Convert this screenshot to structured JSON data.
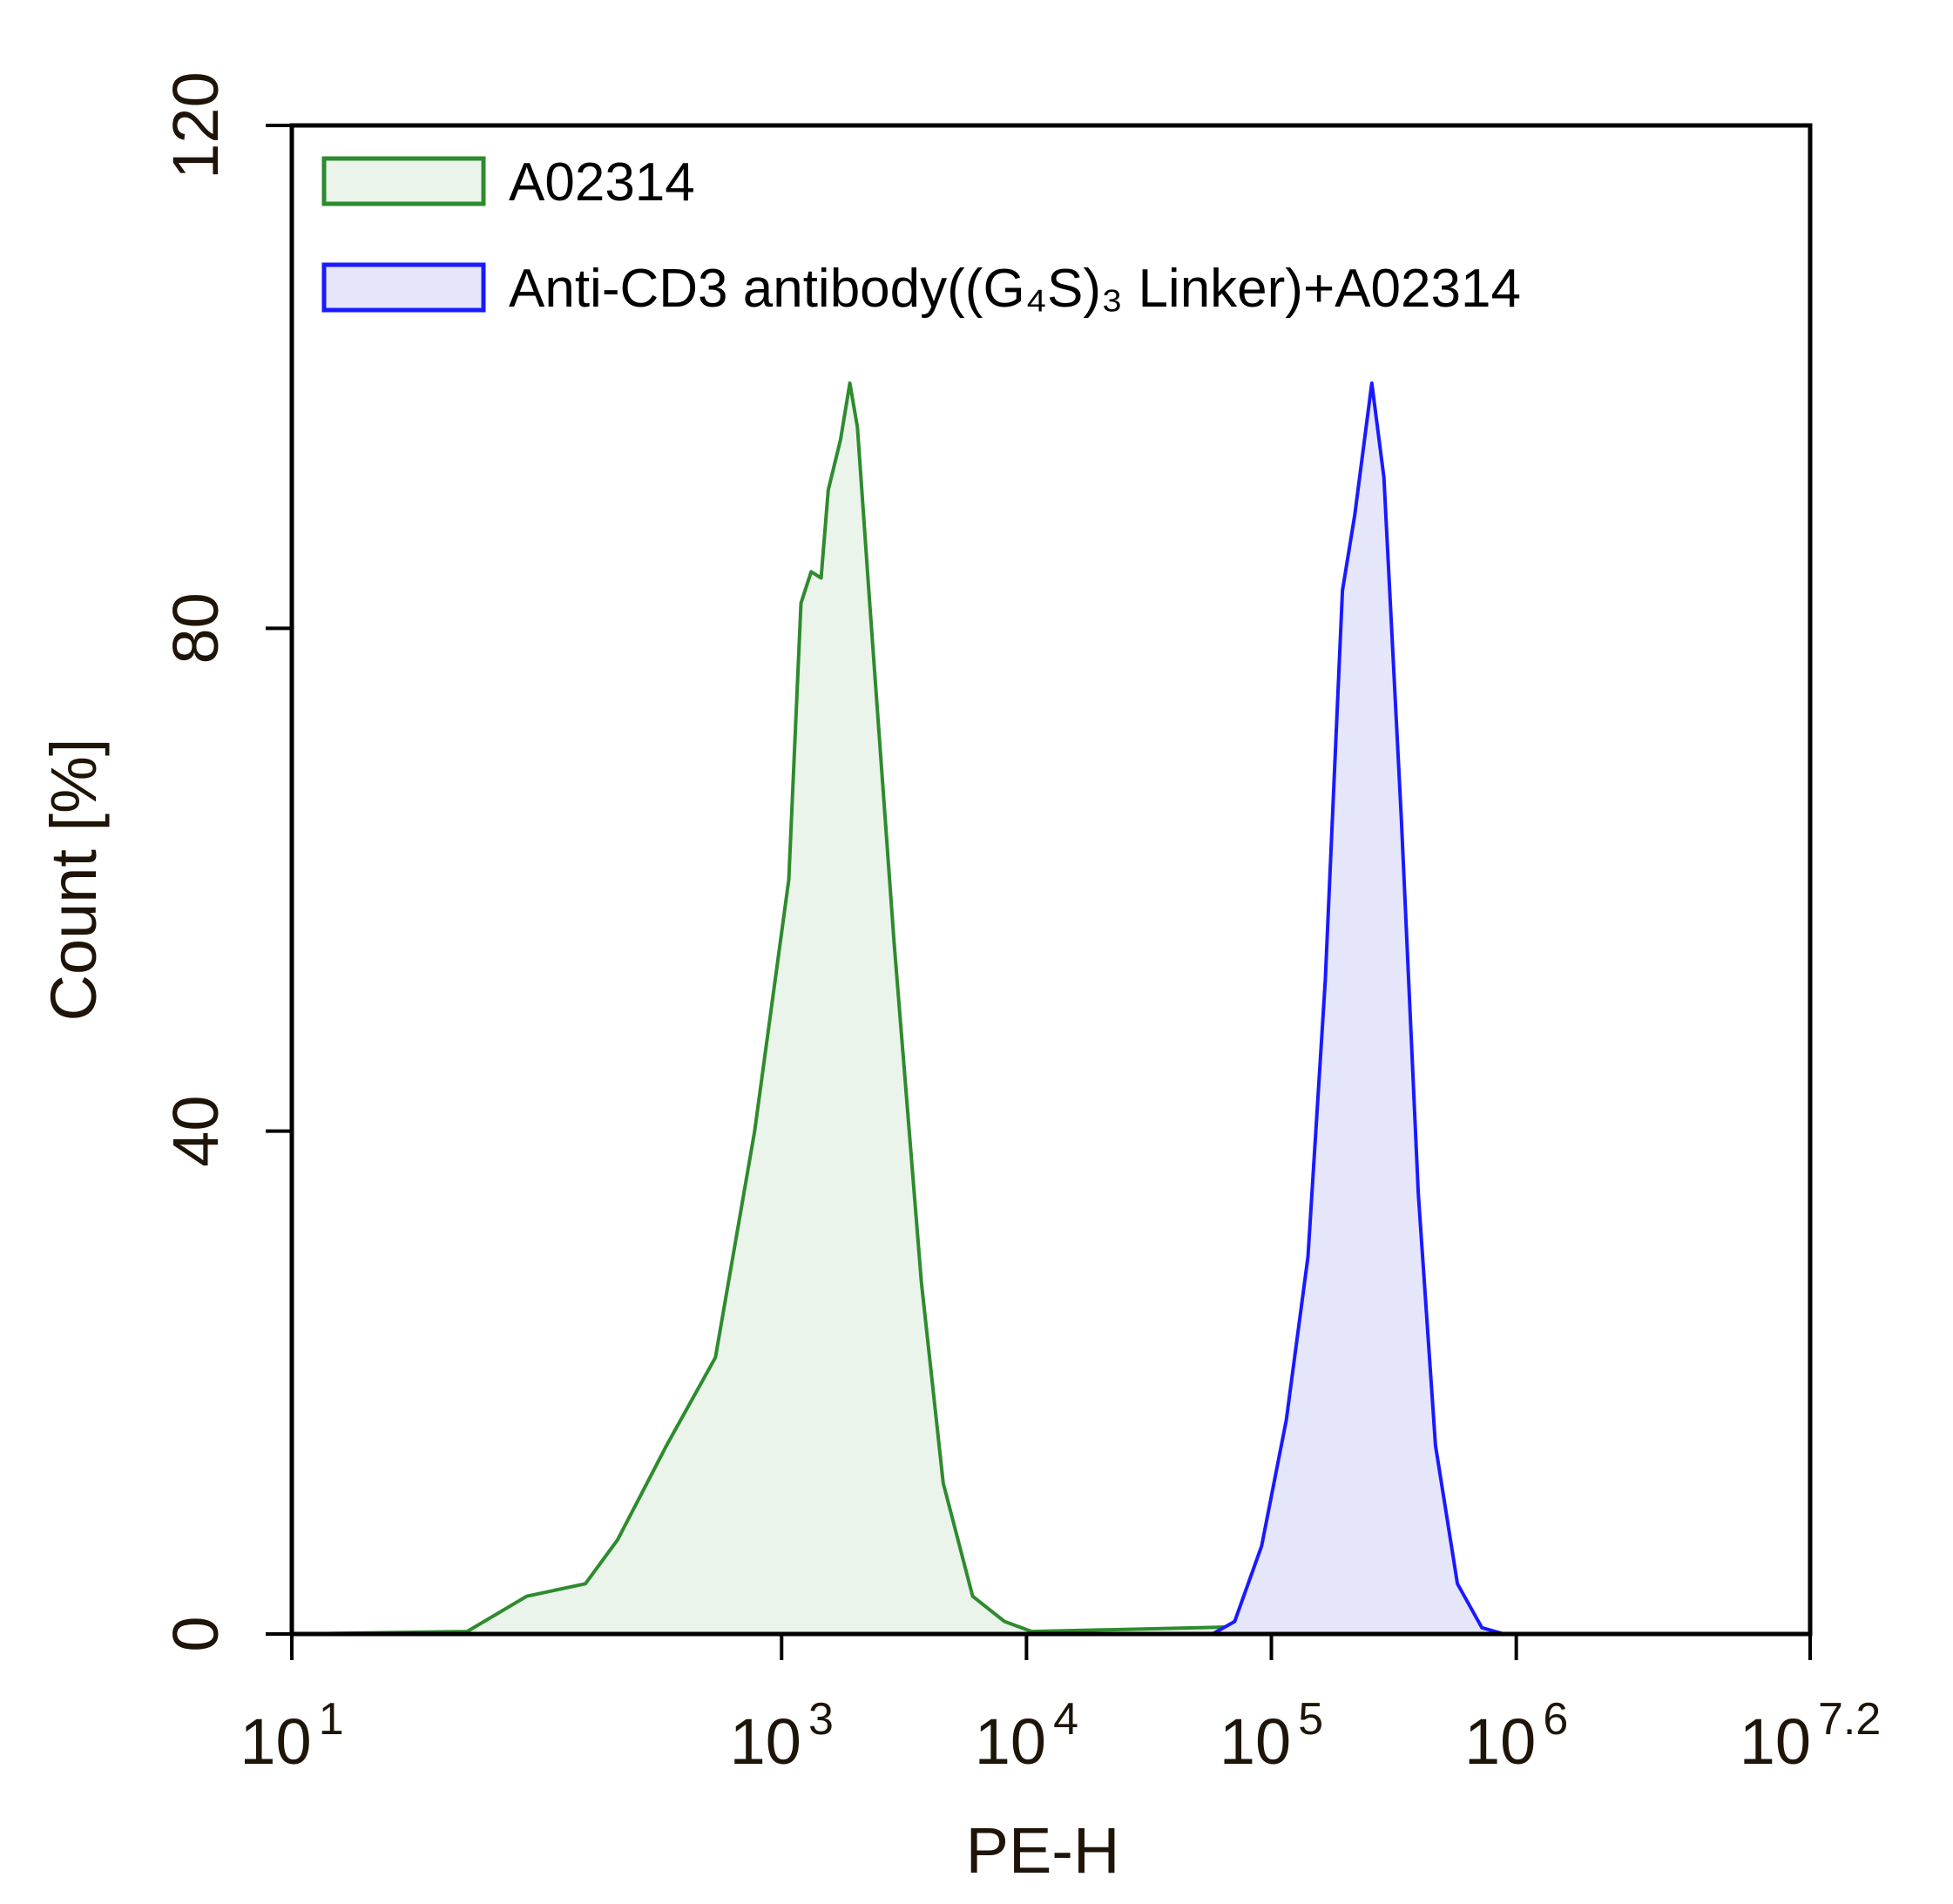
{
  "chart_data": {
    "type": "line",
    "x_label": "PE-H",
    "y_label": "Count [%]",
    "xscale": "log",
    "xlim": [
      10,
      15848932
    ],
    "xticks": [
      {
        "value": 10,
        "label": "10",
        "exponent": "1"
      },
      {
        "value": 1000,
        "label": "10",
        "exponent": "3"
      },
      {
        "value": 10000,
        "label": "10",
        "exponent": "4"
      },
      {
        "value": 100000,
        "label": "10",
        "exponent": "5"
      },
      {
        "value": 1000000,
        "label": "10",
        "exponent": "6"
      },
      {
        "value": 15848932,
        "label": "10",
        "exponent": "7.2"
      }
    ],
    "ylim": [
      0,
      120
    ],
    "yticks": [
      0,
      40,
      80,
      120
    ],
    "legend": "upper left",
    "series": [
      {
        "name": "A02314",
        "color": "#2e8b2e",
        "fill": "#eaf4ea",
        "x": [
          10,
          52,
          91,
          158,
          214,
          339,
          537,
          776,
          1070,
          1200,
          1320,
          1450,
          1550,
          1740,
          1900,
          2040,
          2290,
          2880,
          3720,
          4570,
          6030,
          8130,
          10500,
          51300,
          186000,
          257000,
          447000
        ],
        "values": [
          0,
          0.2,
          3,
          4,
          7.5,
          15,
          22,
          40,
          60,
          82,
          84.5,
          84,
          91,
          95,
          99.5,
          96,
          82,
          55,
          28,
          12,
          3,
          1,
          0.2,
          0.5,
          0.8,
          0.2,
          0
        ]
      },
      {
        "name": "Anti-CD3 antibody((G₄S)₃ Linker)+A02314",
        "color": "#1a1aff",
        "fill": "#e6e6fa",
        "x": [
          57500,
          70800,
          91200,
          115000,
          141000,
          166000,
          195000,
          219000,
          257000,
          288000,
          339000,
          398000,
          468000,
          575000,
          724000,
          891000
        ],
        "values": [
          0,
          1,
          7,
          17,
          30,
          52,
          83,
          89,
          99.5,
          92,
          65,
          35,
          15,
          4,
          0.5,
          0
        ]
      }
    ]
  }
}
